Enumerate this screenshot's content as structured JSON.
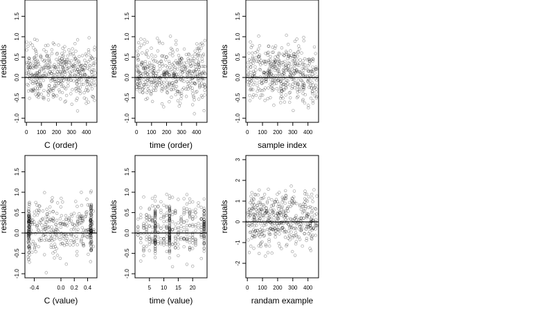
{
  "chart_data": [
    {
      "type": "scatter",
      "xlabel": "C (order)",
      "ylabel": "residuals",
      "xlim": [
        -10,
        470
      ],
      "ylim": [
        -1.1,
        1.9
      ],
      "xticks": [
        0,
        100,
        200,
        300,
        400
      ],
      "yticks": [
        -1.0,
        -0.5,
        0.0,
        0.5,
        1.0,
        1.5
      ],
      "x_tick_labels": [
        "0",
        "100",
        "200",
        "300",
        "400"
      ],
      "y_tick_labels": [
        "-1.0",
        "-0.5",
        "0.0",
        "0.5",
        "1.0",
        "1.5"
      ],
      "reference_line_y": 0,
      "n_points": 460,
      "x_range": [
        0,
        460
      ],
      "y_range": [
        -1.0,
        1.8
      ],
      "x_distribution": "uniform",
      "x_clusters": [],
      "seed": 11
    },
    {
      "type": "scatter",
      "xlabel": "time (order)",
      "ylabel": "residuals",
      "xlim": [
        -10,
        470
      ],
      "ylim": [
        -1.1,
        1.9
      ],
      "xticks": [
        0,
        100,
        200,
        300,
        400
      ],
      "yticks": [
        -1.0,
        -0.5,
        0.0,
        0.5,
        1.0,
        1.5
      ],
      "x_tick_labels": [
        "0",
        "100",
        "200",
        "300",
        "400"
      ],
      "y_tick_labels": [
        "-1.0",
        "-0.5",
        "0.0",
        "0.5",
        "1.0",
        "1.5"
      ],
      "reference_line_y": 0,
      "n_points": 460,
      "x_range": [
        0,
        460
      ],
      "y_range": [
        -1.0,
        1.8
      ],
      "x_distribution": "uniform",
      "x_clusters": [],
      "seed": 23
    },
    {
      "type": "scatter",
      "xlabel": "sample index",
      "ylabel": "residuals",
      "xlim": [
        -10,
        470
      ],
      "ylim": [
        -1.1,
        1.9
      ],
      "xticks": [
        0,
        100,
        200,
        300,
        400
      ],
      "yticks": [
        -1.0,
        -0.5,
        0.0,
        0.5,
        1.0,
        1.5
      ],
      "x_tick_labels": [
        "0",
        "100",
        "200",
        "300",
        "400"
      ],
      "y_tick_labels": [
        "-1.0",
        "-0.5",
        "0.0",
        "0.5",
        "1.0",
        "1.5"
      ],
      "reference_line_y": 0,
      "n_points": 460,
      "x_range": [
        0,
        460
      ],
      "y_range": [
        -1.0,
        1.8
      ],
      "x_distribution": "uniform",
      "x_clusters": [],
      "seed": 37
    },
    {
      "type": "scatter",
      "xlabel": "C (value)",
      "ylabel": "residuals",
      "xlim": [
        -0.54,
        0.54
      ],
      "ylim": [
        -1.1,
        1.9
      ],
      "xticks": [
        -0.4,
        0.0,
        0.2,
        0.4
      ],
      "yticks": [
        -1.0,
        -0.5,
        0.0,
        0.5,
        1.0,
        1.5
      ],
      "x_tick_labels": [
        "-0.4",
        "0.0",
        "0.2",
        "0.4"
      ],
      "y_tick_labels": [
        "-1.0",
        "-0.5",
        "0.0",
        "0.5",
        "1.0",
        "1.5"
      ],
      "reference_line_y": 0,
      "n_points": 460,
      "x_range": [
        -0.5,
        0.5
      ],
      "y_range": [
        -1.0,
        1.8
      ],
      "x_distribution": "uniform",
      "x_clusters": [
        -0.48,
        0.45
      ],
      "seed": 41
    },
    {
      "type": "scatter",
      "xlabel": "time (value)",
      "ylabel": "residuals",
      "xlim": [
        0,
        25
      ],
      "ylim": [
        -1.1,
        1.9
      ],
      "xticks": [
        5,
        10,
        15,
        20
      ],
      "yticks": [
        -1.0,
        -0.5,
        0.0,
        0.5,
        1.0,
        1.5
      ],
      "x_tick_labels": [
        "5",
        "10",
        "15",
        "20"
      ],
      "y_tick_labels": [
        "-1.0",
        "-0.5",
        "0.0",
        "0.5",
        "1.0",
        "1.5"
      ],
      "reference_line_y": 0,
      "n_points": 460,
      "x_range": [
        1,
        24
      ],
      "y_range": [
        -1.0,
        1.8
      ],
      "x_distribution": "integer",
      "x_clusters": [
        7,
        12,
        24
      ],
      "seed": 53
    },
    {
      "type": "scatter",
      "xlabel": "randam example",
      "ylabel": "residuals",
      "xlim": [
        -10,
        470
      ],
      "ylim": [
        -2.7,
        3.2
      ],
      "xticks": [
        0,
        100,
        200,
        300,
        400
      ],
      "yticks": [
        -2,
        -1,
        0,
        1,
        2,
        3
      ],
      "x_tick_labels": [
        "0",
        "100",
        "200",
        "300",
        "400"
      ],
      "y_tick_labels": [
        "-2",
        "-1",
        "0",
        "1",
        "2",
        "3"
      ],
      "reference_line_y": 0,
      "n_points": 460,
      "x_range": [
        0,
        460
      ],
      "y_range": [
        -2.5,
        3.0
      ],
      "x_distribution": "uniform",
      "x_clusters": [],
      "seed": 67
    }
  ]
}
